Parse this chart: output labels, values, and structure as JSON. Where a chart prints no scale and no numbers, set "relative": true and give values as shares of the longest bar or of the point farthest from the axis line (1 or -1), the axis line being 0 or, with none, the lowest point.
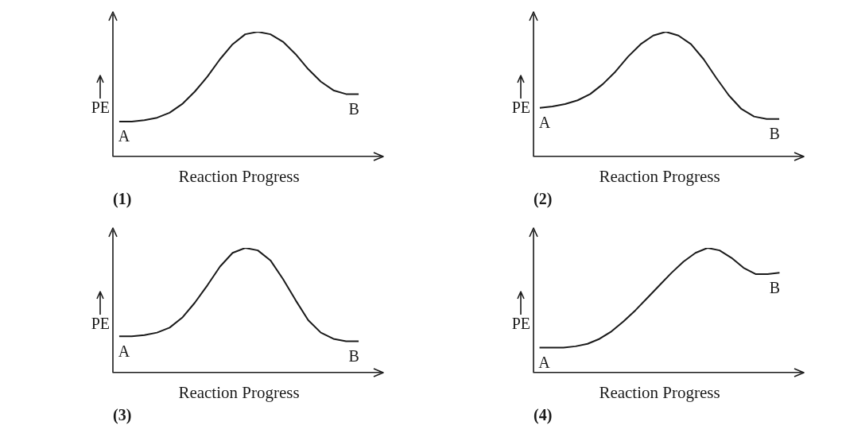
{
  "chart_data": [
    {
      "type": "line",
      "title": "(1)",
      "xlabel": "Reaction Progress",
      "ylabel": "PE",
      "relative": true,
      "color": "#1a1a1a",
      "categories": [
        null,
        null,
        null,
        null,
        null,
        null,
        null,
        null,
        null,
        null,
        null,
        null,
        null,
        null,
        null,
        null,
        null,
        null,
        null,
        null
      ],
      "values": [
        0.28,
        0.28,
        0.29,
        0.31,
        0.35,
        0.42,
        0.52,
        0.64,
        0.78,
        0.9,
        0.98,
        1,
        0.98,
        0.92,
        0.82,
        0.7,
        0.6,
        0.53,
        0.5,
        0.5
      ],
      "annotations": [
        "A",
        "B"
      ]
    },
    {
      "type": "line",
      "title": "(2)",
      "xlabel": "Reaction Progress",
      "ylabel": "PE",
      "relative": true,
      "color": "#1a1a1a",
      "categories": [
        null,
        null,
        null,
        null,
        null,
        null,
        null,
        null,
        null,
        null,
        null,
        null,
        null,
        null,
        null,
        null,
        null,
        null,
        null,
        null
      ],
      "values": [
        0.39,
        0.4,
        0.42,
        0.45,
        0.5,
        0.58,
        0.68,
        0.8,
        0.9,
        0.97,
        1,
        0.97,
        0.9,
        0.78,
        0.63,
        0.49,
        0.38,
        0.32,
        0.3,
        0.3
      ],
      "annotations": [
        "A",
        "B"
      ]
    },
    {
      "type": "line",
      "title": "(3)",
      "xlabel": "Reaction Progress",
      "ylabel": "PE",
      "relative": true,
      "color": "#1a1a1a",
      "categories": [
        null,
        null,
        null,
        null,
        null,
        null,
        null,
        null,
        null,
        null,
        null,
        null,
        null,
        null,
        null,
        null,
        null,
        null,
        null,
        null
      ],
      "values": [
        0.29,
        0.29,
        0.3,
        0.32,
        0.36,
        0.44,
        0.56,
        0.7,
        0.85,
        0.96,
        1,
        0.98,
        0.9,
        0.75,
        0.58,
        0.42,
        0.32,
        0.27,
        0.25,
        0.25
      ],
      "annotations": [
        "A",
        "B"
      ]
    },
    {
      "type": "line",
      "title": "(4)",
      "xlabel": "Reaction Progress",
      "ylabel": "PE",
      "relative": true,
      "color": "#1a1a1a",
      "categories": [
        null,
        null,
        null,
        null,
        null,
        null,
        null,
        null,
        null,
        null,
        null,
        null,
        null,
        null,
        null,
        null,
        null,
        null,
        null,
        null,
        null
      ],
      "values": [
        0.2,
        0.2,
        0.2,
        0.21,
        0.23,
        0.27,
        0.33,
        0.41,
        0.5,
        0.6,
        0.7,
        0.8,
        0.89,
        0.96,
        1,
        0.98,
        0.92,
        0.84,
        0.79,
        0.79,
        0.8
      ],
      "annotations": [
        "A",
        "B"
      ]
    }
  ]
}
